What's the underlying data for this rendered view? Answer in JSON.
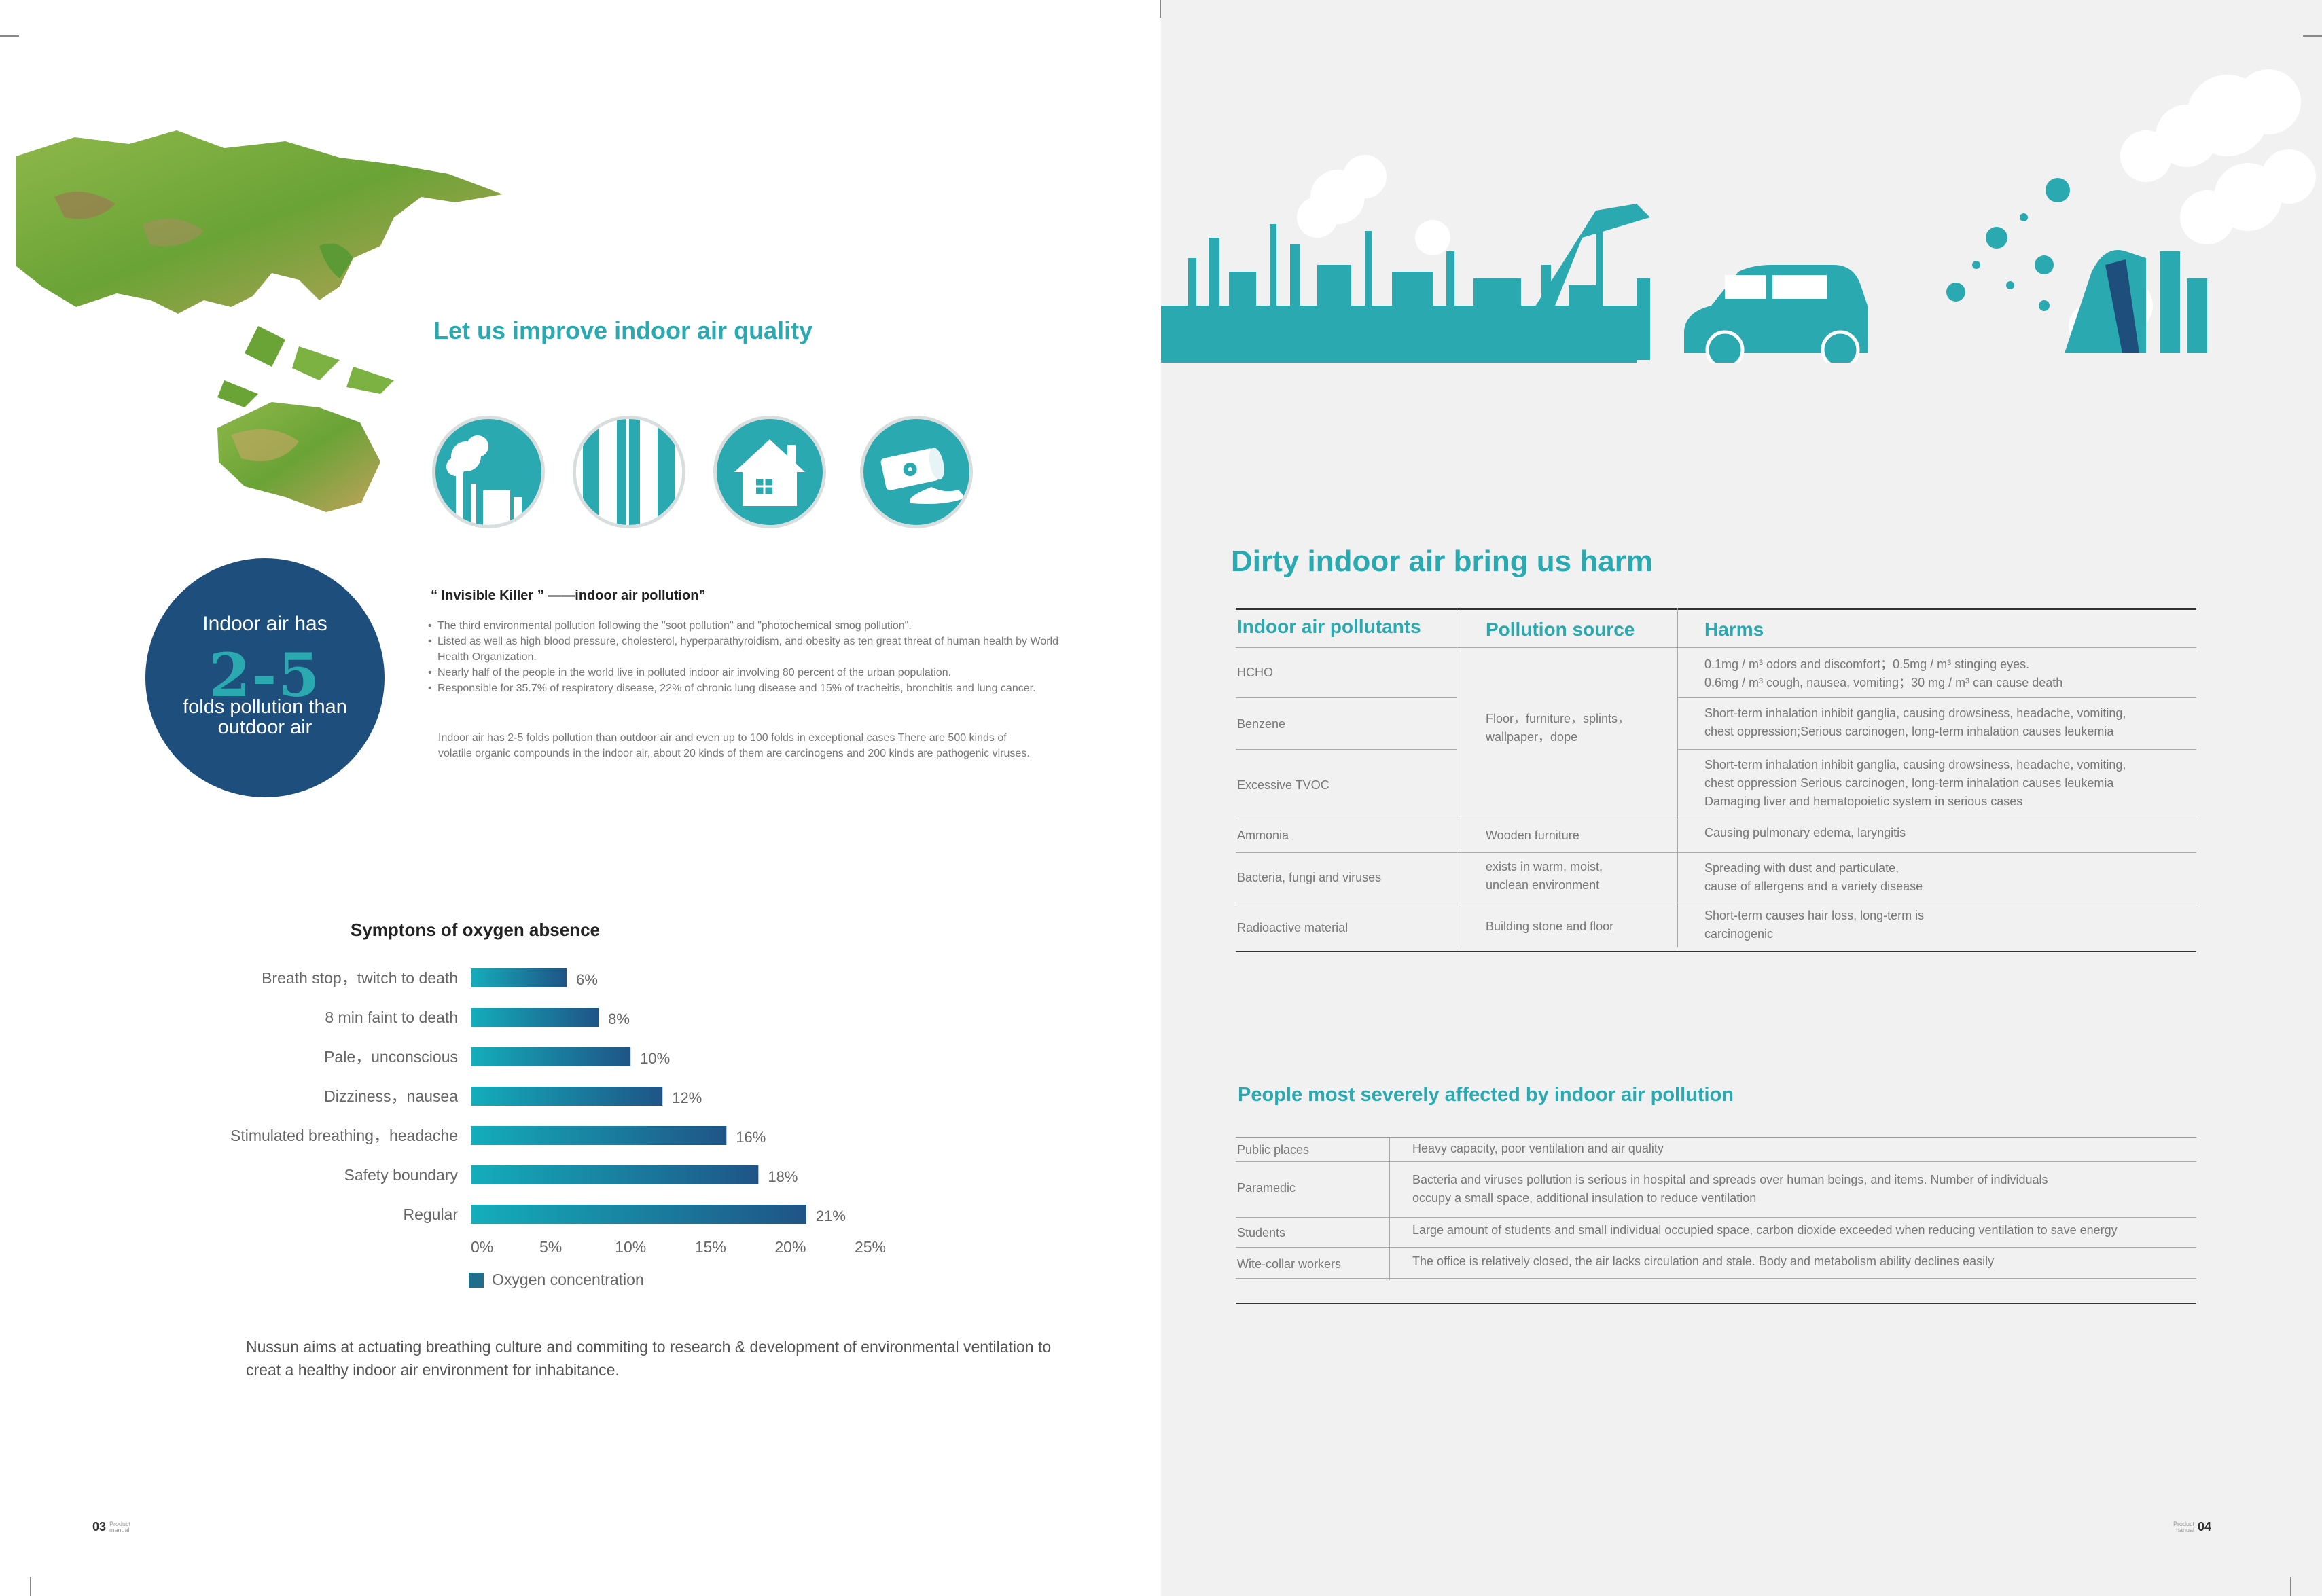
{
  "left": {
    "improve_title": "Let us improve indoor air quality",
    "icons": [
      "factory-chimney-icon",
      "pipes-icon",
      "house-icon",
      "chemical-barrel-icon"
    ],
    "stat": {
      "line1": "Indoor air has",
      "big": "2-5",
      "line2": "folds pollution than outdoor air"
    },
    "killer": {
      "title": "“ Invisible Killer ”  ——indoor air pollution”",
      "bullets": [
        "The third environmental pollution following the \"soot pollution\" and \"photochemical smog pollution\".",
        "Listed as well as high blood pressure, cholesterol, hyperparathyroidism, and obesity as ten great threat of human health by World Health Organization.",
        "Nearly half of the people in the world live in polluted indoor air involving 80 percent of the urban population.",
        "Responsible for 35.7% of respiratory disease, 22% of chronic lung disease and 15% of tracheitis, bronchitis and lung cancer."
      ],
      "paragraph": "Indoor air has 2-5 folds pollution than outdoor air and even up to 100 folds in exceptional cases There are 500 kinds of volatile organic compounds in the indoor air, about 20 kinds of them are carcinogens and 200 kinds are pathogenic viruses."
    },
    "mission": "Nussun aims at actuating  breathing culture and commiting to research & development of environmental ventilation to creat a healthy indoor air environment for inhabitance.",
    "folio": {
      "number": "03",
      "label": "Product manual"
    }
  },
  "chart_data": {
    "type": "bar",
    "orientation": "horizontal",
    "title": "Symptons of oxygen absence",
    "categories": [
      "Breath stop，twitch to death",
      "8 min faint to death",
      "Pale，unconscious",
      "Dizziness，nausea",
      "Stimulated breathing，headache",
      "Safety boundary",
      "Regular"
    ],
    "series": [
      {
        "name": "Oxygen concentration",
        "values": [
          6,
          8,
          10,
          12,
          16,
          18,
          21
        ]
      }
    ],
    "value_labels": [
      "6%",
      "8%",
      "10%",
      "12%",
      "16%",
      "18%",
      "21%"
    ],
    "xticks": [
      "0%",
      "5%",
      "10%",
      "15%",
      "20%",
      "25%"
    ],
    "xlim": [
      0,
      25
    ],
    "legend_position": "bottom",
    "colors": {
      "bar_start": "#13aebc",
      "bar_end": "#1f5486"
    }
  },
  "right": {
    "harm_title": "Dirty indoor air bring us harm",
    "table1": {
      "headers": [
        "Indoor air pollutants",
        "Pollution source",
        "Harms"
      ],
      "rows": [
        {
          "pollutant": "HCHO",
          "harm": [
            "0.1mg / m³ odors and discomfort；0.5mg / m³ stinging eyes.",
            "0.6mg / m³ cough, nausea, vomiting；30 mg / m³ can cause death"
          ]
        },
        {
          "pollutant": "Benzene",
          "harm": [
            "Short-term inhalation inhibit ganglia, causing drowsiness, headache, vomiting,",
            "chest oppression;Serious carcinogen, long-term inhalation causes leukemia"
          ]
        },
        {
          "pollutant": "Excessive TVOC",
          "harm": [
            "Short-term inhalation inhibit ganglia, causing drowsiness, headache, vomiting,",
            "chest oppression Serious carcinogen, long-term inhalation causes leukemia",
            "Damaging liver and hematopoietic system in serious cases"
          ]
        },
        {
          "pollutant": "Ammonia",
          "source": [
            "Wooden furniture"
          ],
          "harm": [
            "Causing pulmonary edema, laryngitis"
          ]
        },
        {
          "pollutant": "Bacteria, fungi and viruses",
          "source": [
            "exists in warm, moist,",
            "unclean environment"
          ],
          "harm": [
            "Spreading with dust and particulate,",
            "cause of allergens and a variety disease"
          ]
        },
        {
          "pollutant": "Radioactive material",
          "source": [
            "Building stone and floor"
          ],
          "harm": [
            "Short-term causes hair loss, long-term is",
            "carcinogenic"
          ]
        }
      ],
      "shared_source": [
        "Floor，furniture，splints，",
        "wallpaper，dope"
      ]
    },
    "people_title": "People most severely affected by indoor air pollution",
    "table2": {
      "rows": [
        {
          "group": "Public places",
          "desc": [
            "Heavy capacity, poor ventilation and air quality"
          ]
        },
        {
          "group": "Paramedic",
          "desc": [
            "Bacteria and viruses pollution is serious in hospital and spreads over human beings, and items. Number of individuals",
            "occupy a small space, additional insulation to reduce ventilation"
          ]
        },
        {
          "group": "Students",
          "desc": [
            "Large amount of students and small individual occupied space, carbon dioxide exceeded when reducing ventilation to save energy"
          ]
        },
        {
          "group": "Wite-collar workers",
          "desc": [
            "The office is relatively closed, the air lacks circulation and stale. Body and metabolism ability declines easily"
          ]
        }
      ]
    },
    "folio": {
      "number": "04",
      "label": "Product manual"
    },
    "colors": {
      "accent": "#2aa9b1",
      "navy": "#1e4f7c"
    }
  }
}
